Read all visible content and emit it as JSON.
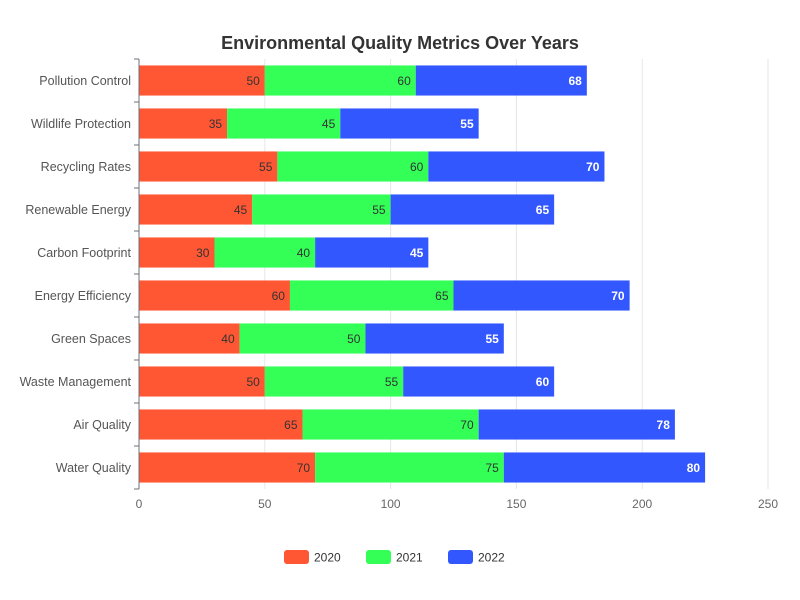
{
  "chart_data": {
    "type": "bar",
    "orientation": "horizontal",
    "stacked": true,
    "title": "Environmental Quality Metrics Over Years",
    "categories": [
      "Pollution Control",
      "Wildlife Protection",
      "Recycling Rates",
      "Renewable Energy",
      "Carbon Footprint",
      "Energy Efficiency",
      "Green Spaces",
      "Waste Management",
      "Air Quality",
      "Water Quality"
    ],
    "series": [
      {
        "name": "2020",
        "color": "#ff5733",
        "values": [
          50,
          35,
          55,
          45,
          30,
          60,
          40,
          50,
          65,
          70
        ]
      },
      {
        "name": "2021",
        "color": "#33ff57",
        "values": [
          60,
          45,
          60,
          55,
          40,
          65,
          50,
          55,
          70,
          75
        ]
      },
      {
        "name": "2022",
        "color": "#3357ff",
        "values": [
          68,
          55,
          70,
          65,
          45,
          70,
          55,
          60,
          78,
          80
        ]
      }
    ],
    "xlim": [
      0,
      250
    ],
    "xticks": [
      0,
      50,
      100,
      150,
      200,
      250
    ],
    "grid": "vertical",
    "legend_position": "bottom-center"
  }
}
